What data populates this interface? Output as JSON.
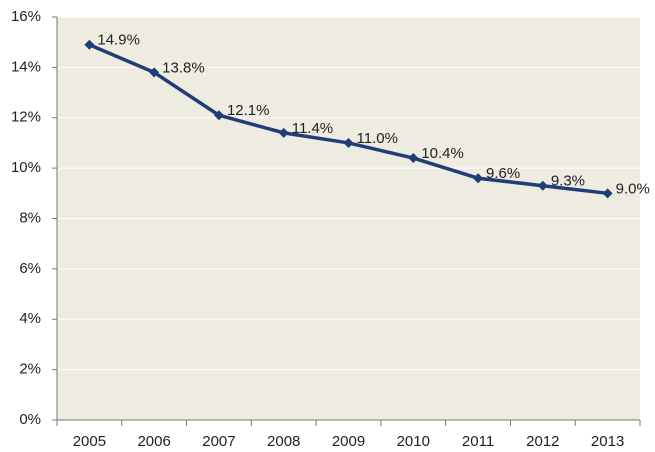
{
  "chart_data": {
    "type": "line",
    "categories": [
      "2005",
      "2006",
      "2007",
      "2008",
      "2009",
      "2010",
      "2011",
      "2012",
      "2013"
    ],
    "series": [
      {
        "color": "#1f3d78",
        "values": [
          14.9,
          13.8,
          12.1,
          11.4,
          11.0,
          10.4,
          9.6,
          9.3,
          9.0
        ],
        "value_labels": [
          "14.9%",
          "13.8%",
          "12.1%",
          "11.4%",
          "11.0%",
          "10.4%",
          "9.6%",
          "9.3%",
          "9.0%"
        ]
      }
    ],
    "ylim": [
      0,
      16
    ],
    "yticks": [
      {
        "value": 0,
        "label": "0%"
      },
      {
        "value": 2,
        "label": "2%"
      },
      {
        "value": 4,
        "label": "4%"
      },
      {
        "value": 6,
        "label": "6%"
      },
      {
        "value": 8,
        "label": "8%"
      },
      {
        "value": 10,
        "label": "10%"
      },
      {
        "value": 12,
        "label": "12%"
      },
      {
        "value": 14,
        "label": "14%"
      },
      {
        "value": 16,
        "label": "16%"
      }
    ],
    "grid": true,
    "background": "#eeebe0"
  }
}
